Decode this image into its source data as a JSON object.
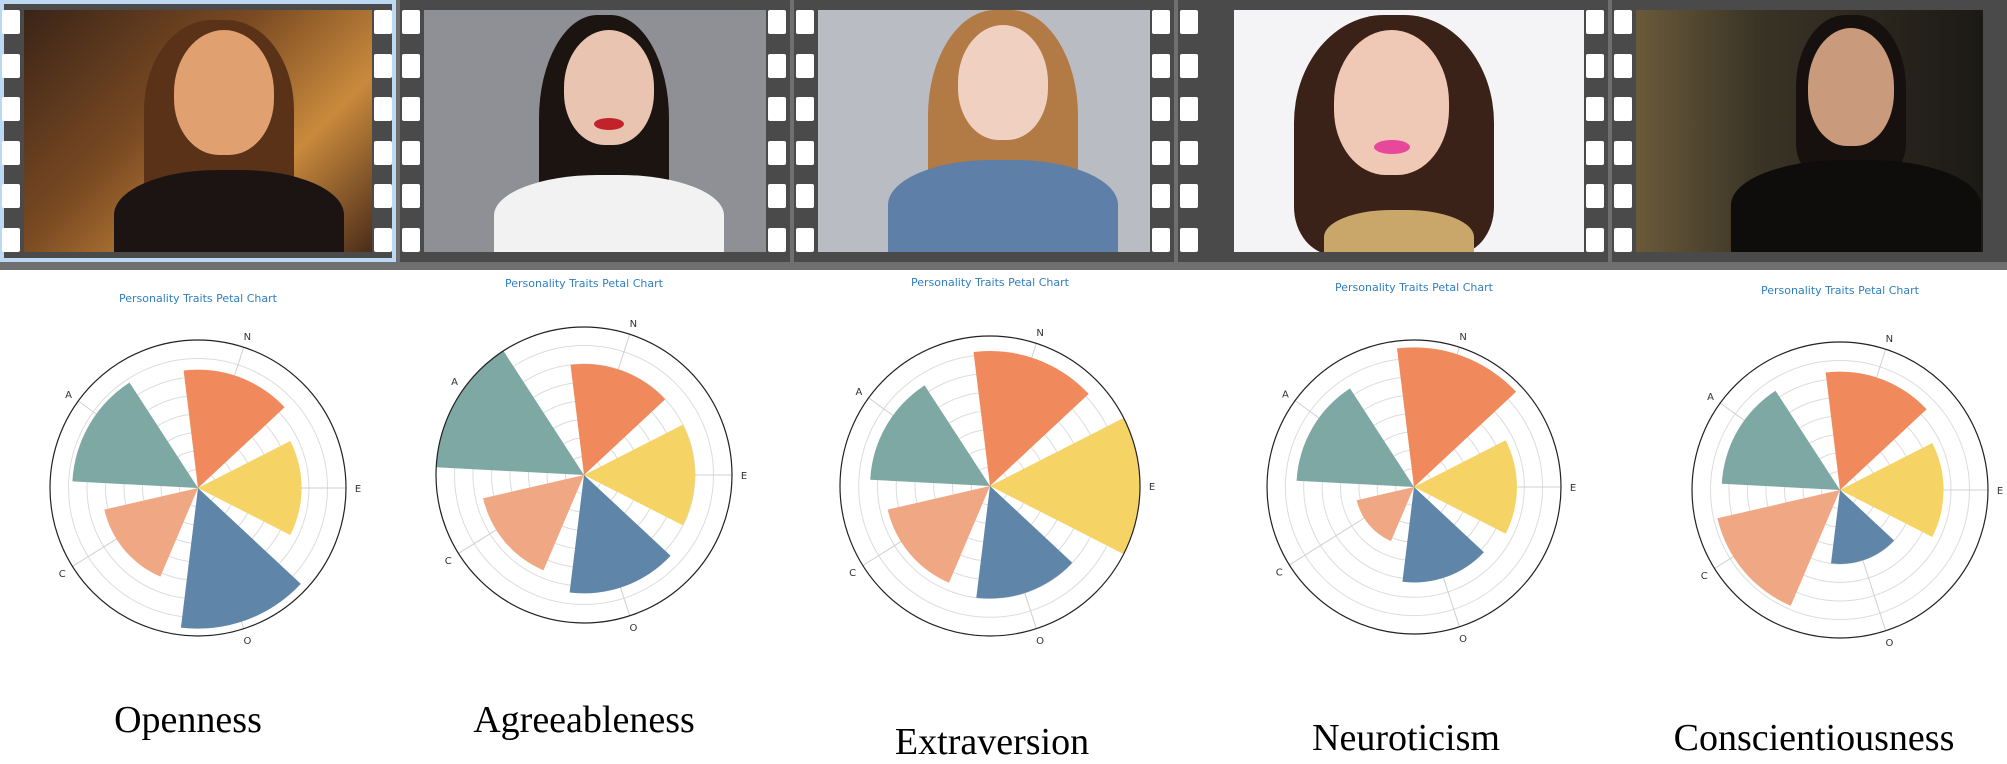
{
  "photos": [
    {
      "alt": "woman with ponytail, warm string lights background"
    },
    {
      "alt": "woman with long dark hair, grey background"
    },
    {
      "alt": "woman with long light-brown hair"
    },
    {
      "alt": "woman with dark hair, white background"
    },
    {
      "alt": "man with beard, dark room"
    }
  ],
  "colors": {
    "N": "#f08a5d",
    "E": "#f6d365",
    "O": "#5f86a8",
    "C": "#f0a884",
    "A": "#7ea8a3",
    "title": "#2f7fc1"
  },
  "chart_data": [
    {
      "type": "polar-bar",
      "title": "Personality Traits Petal Chart",
      "categories": [
        "N",
        "E",
        "O",
        "C",
        "A"
      ],
      "values": [
        0.8,
        0.7,
        0.95,
        0.65,
        0.85
      ],
      "rlim": [
        0,
        1
      ],
      "grid": true,
      "trait": "Openness"
    },
    {
      "type": "polar-bar",
      "title": "Personality Traits Petal Chart",
      "categories": [
        "N",
        "E",
        "O",
        "C",
        "A"
      ],
      "values": [
        0.75,
        0.75,
        0.8,
        0.7,
        1.0
      ],
      "rlim": [
        0,
        1
      ],
      "grid": true,
      "trait": "Agreeableness"
    },
    {
      "type": "polar-bar",
      "title": "Personality Traits Petal Chart",
      "categories": [
        "N",
        "E",
        "O",
        "C",
        "A"
      ],
      "values": [
        0.9,
        1.0,
        0.75,
        0.7,
        0.8
      ],
      "rlim": [
        0,
        1
      ],
      "grid": true,
      "trait": "Extraversion"
    },
    {
      "type": "polar-bar",
      "title": "Personality Traits Petal Chart",
      "categories": [
        "N",
        "E",
        "O",
        "C",
        "A"
      ],
      "values": [
        0.95,
        0.7,
        0.65,
        0.4,
        0.8
      ],
      "rlim": [
        0,
        1
      ],
      "grid": true,
      "trait": "Neuroticism"
    },
    {
      "type": "polar-bar",
      "title": "Personality Traits Petal Chart",
      "categories": [
        "N",
        "E",
        "O",
        "C",
        "A"
      ],
      "values": [
        0.8,
        0.7,
        0.5,
        0.85,
        0.8
      ],
      "rlim": [
        0,
        1
      ],
      "grid": true,
      "trait": "Conscientiousness"
    }
  ]
}
